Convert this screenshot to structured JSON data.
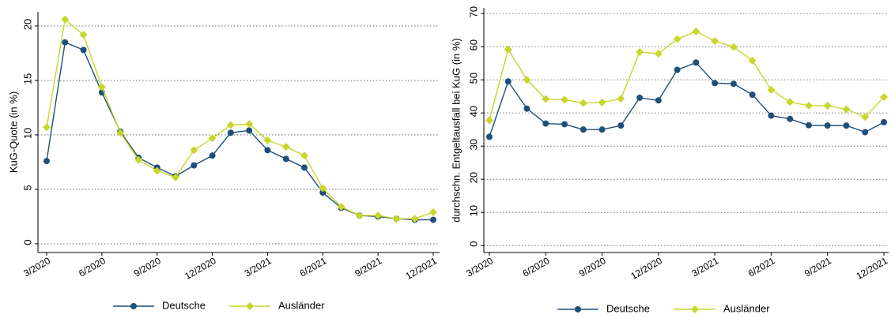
{
  "chart_data": [
    {
      "type": "line",
      "y_label": "KuG-Quote (in %)",
      "categories": [
        "3/2020",
        null,
        null,
        "6/2020",
        null,
        null,
        "9/2020",
        null,
        null,
        "12/2020",
        null,
        null,
        "3/2021",
        null,
        null,
        "6/2021",
        null,
        null,
        "9/2021",
        null,
        null,
        "12/2021"
      ],
      "series": [
        {
          "name": "Deutsche",
          "color": "#1f4e79",
          "marker": "circle",
          "values": [
            7.6,
            18.5,
            17.8,
            13.9,
            10.3,
            7.9,
            7.0,
            6.2,
            7.2,
            8.1,
            10.2,
            10.4,
            8.6,
            7.8,
            7.0,
            4.7,
            3.3,
            2.6,
            2.5,
            2.3,
            2.2,
            2.2
          ]
        },
        {
          "name": "Ausländer",
          "color": "#c8d62b",
          "marker": "diamond",
          "values": [
            10.7,
            20.6,
            19.2,
            14.4,
            10.2,
            7.7,
            6.7,
            6.1,
            8.6,
            9.7,
            10.9,
            11.0,
            9.5,
            8.9,
            8.1,
            5.1,
            3.4,
            2.6,
            2.6,
            2.3,
            2.3,
            2.9
          ]
        }
      ],
      "ylim": [
        -0.8,
        21.3
      ],
      "yticks": [
        0,
        5,
        10,
        15,
        20
      ],
      "grid": true
    },
    {
      "type": "line",
      "y_label": "durchschn. Entgeltausfall bei KuG (in %)",
      "categories": [
        "3/2020",
        null,
        null,
        "6/2020",
        null,
        null,
        "9/2020",
        null,
        null,
        "12/2020",
        null,
        null,
        "3/2021",
        null,
        null,
        "6/2021",
        null,
        null,
        "9/2021",
        null,
        null,
        "12/2021"
      ],
      "series": [
        {
          "name": "Deutsche",
          "color": "#1f4e79",
          "marker": "circle",
          "values": [
            32.8,
            49.5,
            41.3,
            36.8,
            36.6,
            35.0,
            35.0,
            36.2,
            44.6,
            43.8,
            53.0,
            55.2,
            49.0,
            48.8,
            45.5,
            39.2,
            38.2,
            36.3,
            36.2,
            36.2,
            34.2,
            37.2
          ]
        },
        {
          "name": "Ausländer",
          "color": "#c8d62b",
          "marker": "diamond",
          "values": [
            37.8,
            59.2,
            50.0,
            44.2,
            44.0,
            43.0,
            43.2,
            44.3,
            58.4,
            57.9,
            62.3,
            64.6,
            61.7,
            59.9,
            55.8,
            47.0,
            43.3,
            42.2,
            42.2,
            41.1,
            38.8,
            44.8
          ]
        }
      ],
      "ylim": [
        -2.1,
        71.7
      ],
      "yticks": [
        0,
        10,
        20,
        30,
        40,
        50,
        60,
        70
      ],
      "grid": true
    }
  ]
}
